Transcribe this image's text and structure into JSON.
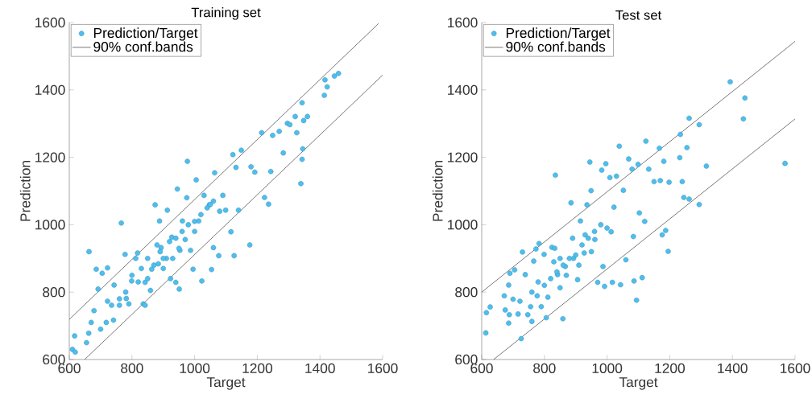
{
  "chart_data": [
    {
      "type": "scatter",
      "title": "Training set",
      "xlabel": "Target",
      "ylabel": "Prediction",
      "xlim": [
        600,
        1600
      ],
      "ylim": [
        600,
        1600
      ],
      "xticks": [
        600,
        800,
        1000,
        1200,
        1400,
        1600
      ],
      "yticks": [
        600,
        800,
        1000,
        1200,
        1400,
        1600
      ],
      "legend": "top left",
      "series": [
        {
          "name": "Prediction/Target",
          "color": "#4dbeee",
          "marker": "circle",
          "x": [
            610,
            619,
            617,
            655,
            662,
            670,
            663,
            679,
            692,
            686,
            705,
            700,
            718,
            722,
            735,
            741,
            722,
            743,
            760,
            766,
            778,
            782,
            790,
            799,
            812,
            818,
            836,
            842,
            842,
            859,
            874,
            863,
            884,
            888,
            893,
            910,
            913,
            923,
            927,
            945,
            951,
            940,
            953,
            961,
            970,
            975,
            977,
            987,
            995,
            1005,
            1013,
            1023,
            1030,
            1047,
            1054,
            1060,
            1064,
            1077,
            1090,
            1099,
            1116,
            1122,
            1126,
            1132,
            1140,
            1149,
            1176,
            1180,
            1192,
            1214,
            1223,
            1236,
            1243,
            1249,
            1270,
            1283,
            1296,
            1304,
            1321,
            1326,
            1339,
            1343,
            1345,
            1348,
            1343,
            1360,
            1414,
            1416,
            1423,
            1446,
            1459,
            800,
            830,
            850,
            870,
            890,
            900,
            920,
            940,
            960,
            980,
            1000,
            1020,
            1040,
            1060,
            900,
            850,
            950,
            1000,
            1050,
            1080,
            760,
            780,
            820,
            880,
            930
          ],
          "values": [
            630,
            622,
            670,
            650,
            678,
            710,
            920,
            745,
            809,
            868,
            856,
            690,
            710,
            773,
            761,
            717,
            872,
            821,
            761,
            1005,
            912,
            781,
            765,
            833,
            900,
            916,
            765,
            761,
            829,
            805,
            1059,
            868,
            884,
            1011,
            932,
            900,
            1043,
            840,
            963,
            1106,
            809,
            829,
            924,
            1011,
            956,
            1080,
            1188,
            924,
            868,
            1133,
            1011,
            833,
            1087,
            1059,
            867,
            932,
            1154,
            908,
            1087,
            1043,
            979,
            1208,
            908,
            1170,
            1043,
            1221,
            940,
            1172,
            1156,
            1273,
            1081,
            1061,
            1158,
            1265,
            1277,
            1213,
            1301,
            1297,
            1321,
            1273,
            1122,
            1194,
            1225,
            1309,
            1362,
            1321,
            1384,
            1430,
            1409,
            1441,
            1449,
            850,
            870,
            900,
            880,
            920,
            900,
            950,
            960,
            980,
            1000,
            1010,
            1030,
            1050,
            1070,
            870,
            840,
            930,
            980,
            1060,
            1040,
            780,
            800,
            830,
            940,
            900
          ]
        },
        {
          "type": "line",
          "name": "90% conf.bands",
          "color": "#000000",
          "line_style": "solid",
          "marker": "none",
          "x": [
            600,
            1587
          ],
          "values": [
            719,
            1597
          ]
        },
        {
          "type": "line",
          "color": "#000000",
          "line_style": "solid",
          "marker": "none",
          "x": [
            649,
            1600
          ],
          "values": [
            600,
            1444
          ]
        }
      ]
    },
    {
      "type": "scatter",
      "title": "Test set",
      "xlabel": "Target",
      "ylabel": "Prediction",
      "xlim": [
        600,
        1600
      ],
      "ylim": [
        600,
        1600
      ],
      "xticks": [
        600,
        800,
        1000,
        1200,
        1400,
        1600
      ],
      "yticks": [
        600,
        800,
        1000,
        1200,
        1400,
        1600
      ],
      "legend": "top left",
      "series": [
        {
          "name": "Prediction/Target",
          "color": "#4dbeee",
          "marker": "circle",
          "x": [
            613,
            615,
            627,
            672,
            675,
            686,
            688,
            686,
            690,
            705,
            700,
            716,
            726,
            730,
            722,
            739,
            747,
            756,
            760,
            766,
            773,
            783,
            777,
            790,
            799,
            806,
            811,
            824,
            833,
            835,
            842,
            850,
            859,
            867,
            885,
            893,
            906,
            915,
            927,
            936,
            945,
            949,
            961,
            970,
            983,
            987,
            992,
            996,
            1009,
            1013,
            1017,
            1022,
            1030,
            1039,
            1043,
            1052,
            1060,
            1069,
            1080,
            1084,
            1086,
            1094,
            1099,
            1103,
            1112,
            1120,
            1124,
            1133,
            1150,
            1167,
            1170,
            1176,
            1181,
            1187,
            1195,
            1198,
            1232,
            1234,
            1240,
            1245,
            1255,
            1262,
            1262,
            1294,
            1294,
            1317,
            1393,
            1435,
            1440,
            1568,
            800,
            820,
            840,
            860,
            880,
            900,
            920,
            940,
            960,
            830,
            870,
            910,
            950,
            980,
            1000,
            780,
            760,
            850,
            890,
            930
          ],
          "values": [
            679,
            739,
            756,
            789,
            747,
            708,
            733,
            821,
            856,
            866,
            779,
            735,
            662,
            919,
            773,
            852,
            733,
            757,
            713,
            892,
            928,
            944,
            789,
            757,
            912,
            724,
            785,
            933,
            930,
            1147,
            852,
            813,
            721,
            876,
            1065,
            900,
            837,
            1011,
            916,
            1059,
            1186,
            1101,
            956,
            829,
            1162,
            876,
            817,
            1181,
            1140,
            979,
            829,
            1052,
            1144,
            1233,
            822,
            1102,
            896,
            1195,
            1165,
            965,
            833,
            776,
            1179,
            1035,
            843,
            1010,
            1248,
            1165,
            1128,
            1227,
            1131,
            970,
            1188,
            983,
            921,
            1126,
            1199,
            1268,
            1128,
            1081,
            1229,
            1316,
            1076,
            1297,
            1060,
            1174,
            1424,
            1314,
            1376,
            1182,
            820,
            840,
            860,
            880,
            900,
            910,
            940,
            960,
            980,
            890,
            850,
            880,
            920,
            1000,
            990,
            830,
            800,
            900,
            960,
            970
          ]
        },
        {
          "type": "line",
          "name": "90% conf.bands",
          "color": "#000000",
          "line_style": "solid",
          "marker": "none",
          "x": [
            600,
            1600
          ],
          "values": [
            800,
            1544
          ]
        },
        {
          "type": "line",
          "color": "#000000",
          "line_style": "solid",
          "marker": "none",
          "x": [
            638,
            1600
          ],
          "values": [
            600,
            1314
          ]
        }
      ]
    }
  ]
}
